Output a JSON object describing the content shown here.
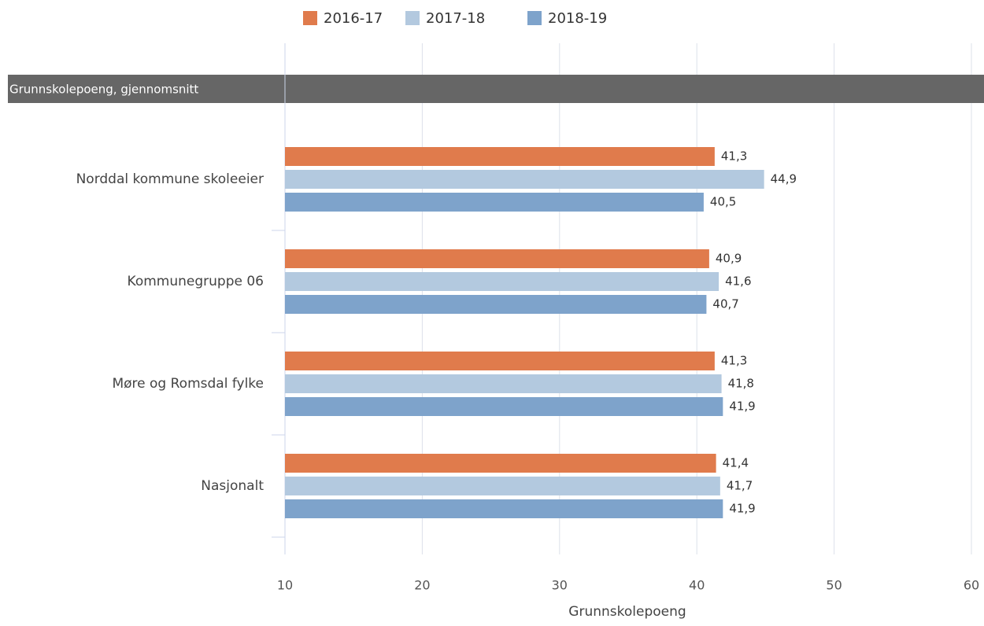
{
  "chart_data": {
    "type": "bar",
    "orientation": "horizontal",
    "title": "Grunnskolepoeng, gjennomsnitt",
    "x_axis_label": "Grunnskolepoeng",
    "categories": [
      "Norddal kommune skoleeier",
      "Kommunegruppe 06",
      "Møre og Romsdal fylke",
      "Nasjonalt"
    ],
    "series": [
      {
        "name": "2016-17",
        "color": "#e07b4c",
        "values": [
          41.3,
          40.9,
          41.3,
          41.4
        ],
        "value_labels": [
          "41,3",
          "40,9",
          "41,3",
          "41,4"
        ]
      },
      {
        "name": "2017-18",
        "color": "#b3c9df",
        "values": [
          44.9,
          41.6,
          41.8,
          41.7
        ],
        "value_labels": [
          "44,9",
          "41,6",
          "41,8",
          "41,7"
        ]
      },
      {
        "name": "2018-19",
        "color": "#7ea3cb",
        "values": [
          40.5,
          40.7,
          41.9,
          41.9
        ],
        "value_labels": [
          "40,5",
          "40,7",
          "41,9",
          "41,9"
        ]
      }
    ],
    "xlim": [
      10,
      60
    ],
    "xticks": [
      10,
      20,
      30,
      40,
      50,
      60
    ],
    "grid": true,
    "legend": "top"
  }
}
